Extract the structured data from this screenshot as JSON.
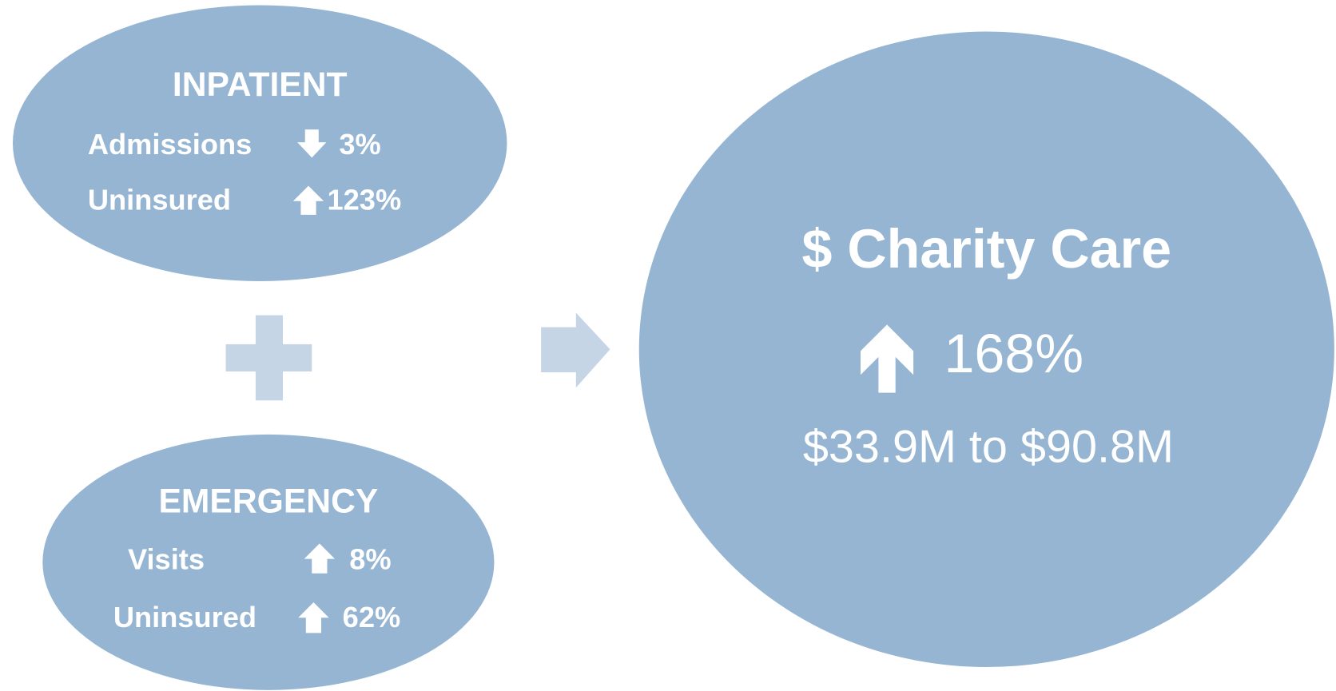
{
  "inpatient": {
    "title": "INPATIENT",
    "rows": [
      {
        "label": "Admissions",
        "value": "3%"
      },
      {
        "label": "Uninsured",
        "value": "123%"
      }
    ]
  },
  "emergency": {
    "title": "EMERGENCY",
    "rows": [
      {
        "label": "Visits",
        "value": "8%"
      },
      {
        "label": "Uninsured",
        "value": "62%"
      }
    ]
  },
  "result": {
    "title": "$ Charity Care",
    "change": "168%",
    "detail": "$33.9M to $90.8M"
  }
}
